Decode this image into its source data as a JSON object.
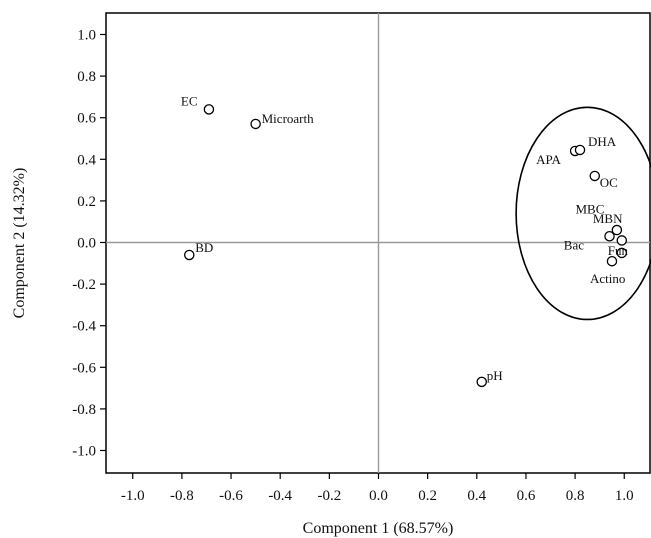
{
  "chart_data": {
    "type": "scatter",
    "xlabel": "Component 1 (68.57%)",
    "ylabel": "Component 2 (14.32%)",
    "xlim": [
      -1.1,
      1.1
    ],
    "ylim": [
      -1.1,
      1.1
    ],
    "xticks": [
      "-1.0",
      "-0.8",
      "-0.6",
      "-0.4",
      "-0.2",
      "0.0",
      "0.2",
      "0.4",
      "0.6",
      "0.8",
      "1.0"
    ],
    "yticks": [
      "1.0",
      "0.8",
      "0.6",
      "0.4",
      "0.2",
      "0.0",
      "-0.2",
      "-0.4",
      "-0.6",
      "-0.8",
      "-1.0"
    ],
    "grid": false,
    "reference_lines": {
      "x": 0.0,
      "y": 0.0
    },
    "points": [
      {
        "label": "EC",
        "x": -0.69,
        "y": 0.64
      },
      {
        "label": "Microarth",
        "x": -0.5,
        "y": 0.57
      },
      {
        "label": "BD",
        "x": -0.77,
        "y": -0.06
      },
      {
        "label": "pH",
        "x": 0.42,
        "y": -0.67
      },
      {
        "label": "APA",
        "x": 0.8,
        "y": 0.44
      },
      {
        "label": "DHA",
        "x": 0.82,
        "y": 0.445
      },
      {
        "label": "OC",
        "x": 0.88,
        "y": 0.32
      },
      {
        "label": "MBC",
        "x": 0.94,
        "y": 0.03
      },
      {
        "label": "MBN",
        "x": 0.97,
        "y": 0.06
      },
      {
        "label": "Bac",
        "x": 0.99,
        "y": 0.01
      },
      {
        "label": "Fun",
        "x": 0.99,
        "y": -0.05
      },
      {
        "label": "Actino",
        "x": 0.95,
        "y": -0.09
      }
    ],
    "annotation_ellipse": {
      "cx": 0.85,
      "cy": 0.14,
      "rx": 0.29,
      "ry": 0.51
    }
  }
}
